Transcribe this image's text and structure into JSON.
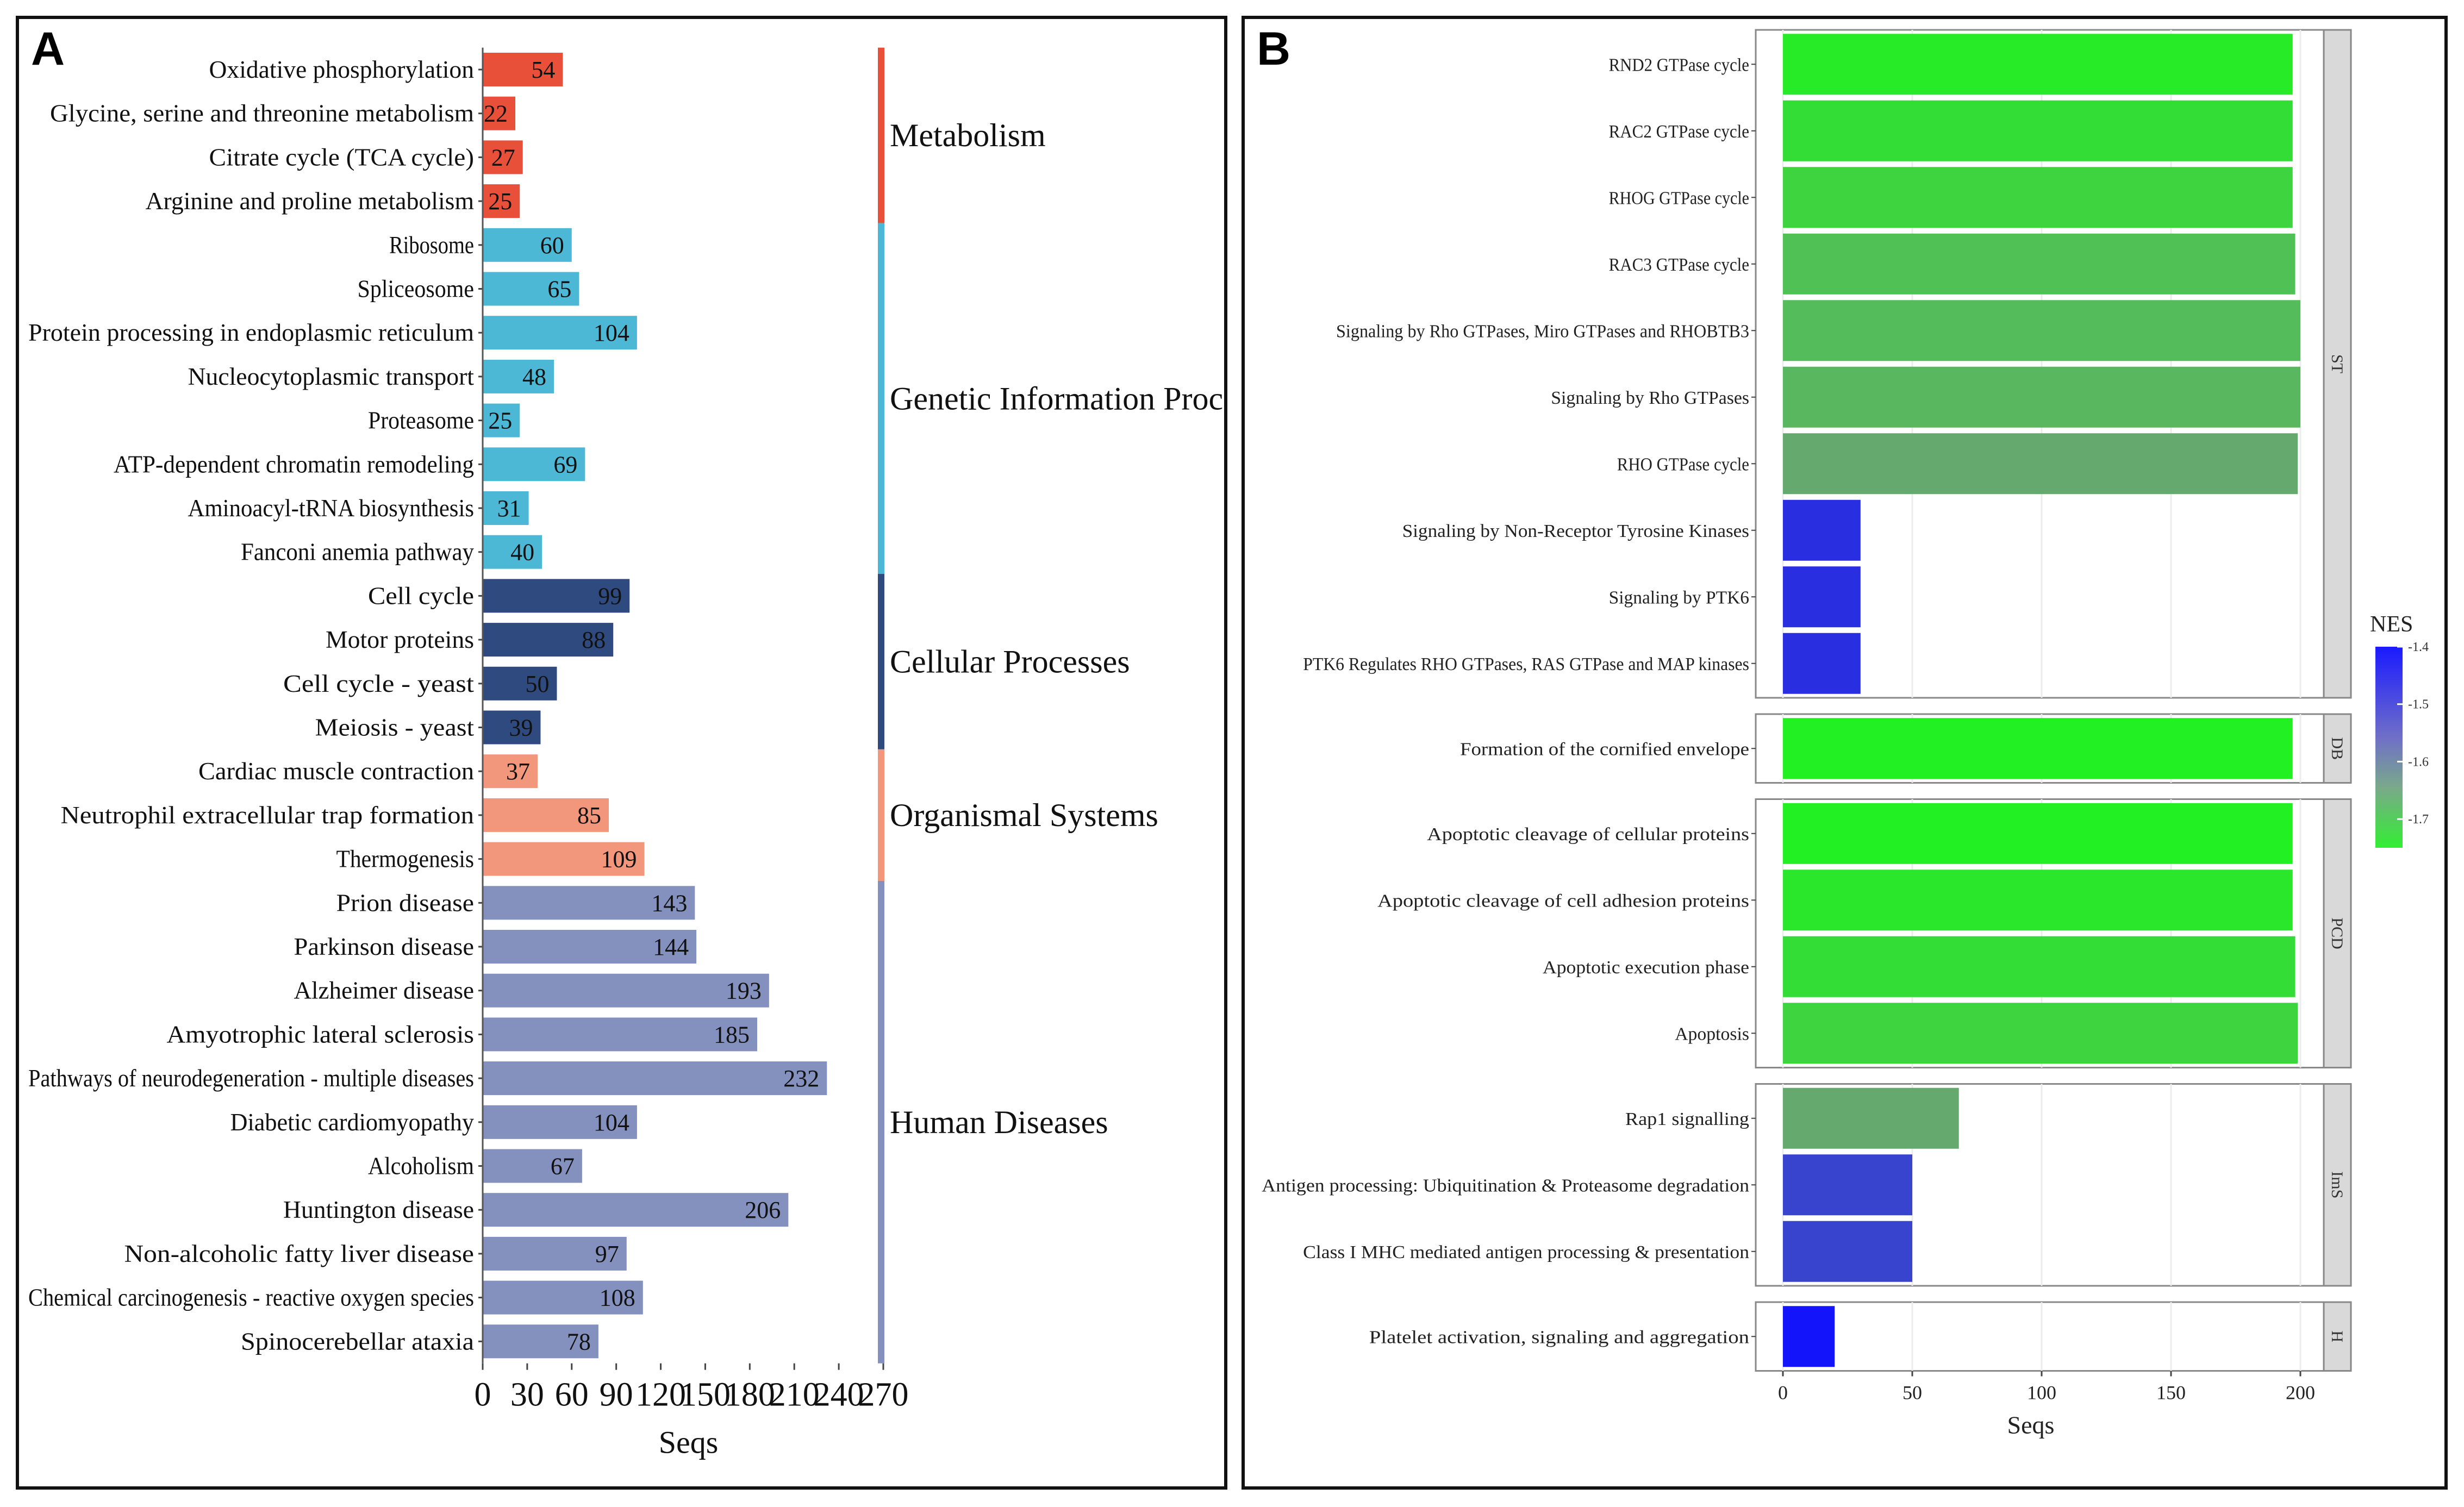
{
  "panelA": {
    "label": "A",
    "chart_data": {
      "type": "bar",
      "orientation": "horizontal",
      "xlabel": "Seqs",
      "xlim": [
        0,
        270
      ],
      "xticks": [
        "0",
        "30",
        "60",
        "90",
        "120",
        "150",
        "180",
        "210",
        "240",
        "270"
      ],
      "categories": [
        "Oxidative phosphorylation",
        "Glycine, serine and threonine metabolism",
        "Citrate cycle (TCA cycle)",
        "Arginine and proline metabolism",
        "Ribosome",
        "Spliceosome",
        "Protein processing in endoplasmic reticulum",
        "Nucleocytoplasmic transport",
        "Proteasome",
        "ATP-dependent chromatin remodeling",
        "Aminoacyl-tRNA biosynthesis",
        "Fanconi anemia pathway",
        "Cell cycle",
        "Motor proteins",
        "Cell cycle - yeast",
        "Meiosis - yeast",
        "Cardiac muscle contraction",
        "Neutrophil extracellular trap formation",
        "Thermogenesis",
        "Prion disease",
        "Parkinson disease",
        "Alzheimer disease",
        "Amyotrophic lateral sclerosis",
        "Pathways of neurodegeneration - multiple diseases",
        "Diabetic cardiomyopathy",
        "Alcoholism",
        "Huntington disease",
        "Non-alcoholic fatty liver disease",
        "Chemical carcinogenesis - reactive oxygen species",
        "Spinocerebellar ataxia"
      ],
      "values": [
        54,
        22,
        27,
        25,
        60,
        65,
        104,
        48,
        25,
        69,
        31,
        40,
        99,
        88,
        50,
        39,
        37,
        85,
        109,
        143,
        144,
        193,
        185,
        232,
        104,
        67,
        206,
        97,
        108,
        78
      ],
      "value_labels": [
        "54",
        "22",
        "27",
        "25",
        "60",
        "65",
        "104",
        "48",
        "25",
        "69",
        "31",
        "40",
        "99",
        "88",
        "50",
        "39",
        "37",
        "85",
        "109",
        "143",
        "144",
        "193",
        "185",
        "232",
        "104",
        "67",
        "206",
        "97",
        "108",
        "78"
      ],
      "groups": [
        {
          "name": "Metabolism",
          "start": 0,
          "end": 3,
          "color": "#e8503a"
        },
        {
          "name": "Genetic Information Processing",
          "start": 4,
          "end": 11,
          "color": "#4db8d6"
        },
        {
          "name": "Cellular Processes",
          "start": 12,
          "end": 15,
          "color": "#2f4a7e"
        },
        {
          "name": "Organismal Systems",
          "start": 16,
          "end": 18,
          "color": "#f2977c"
        },
        {
          "name": "Human Diseases",
          "start": 19,
          "end": 29,
          "color": "#8490bd"
        }
      ]
    }
  },
  "panelB": {
    "label": "B",
    "chart_data": {
      "type": "bar",
      "orientation": "horizontal",
      "xlabel": "Seqs",
      "xlim": [
        0,
        210
      ],
      "xticks": [
        "0",
        "50",
        "100",
        "150",
        "200"
      ],
      "legend": {
        "title": "NES",
        "ticks": [
          "-1.4",
          "-1.5",
          "-1.6",
          "-1.7"
        ],
        "range": [
          -1.75,
          -1.4
        ],
        "position": "right"
      },
      "facets": [
        {
          "name": "ST",
          "rows": [
            {
              "label": "RND2 GTPase cycle",
              "value": 197,
              "nes": -1.75
            },
            {
              "label": "RAC2 GTPase cycle",
              "value": 197,
              "nes": -1.72
            },
            {
              "label": "RHOG GTPase cycle",
              "value": 197,
              "nes": -1.7
            },
            {
              "label": "RAC3 GTPase cycle",
              "value": 198,
              "nes": -1.66
            },
            {
              "label": "Signaling by Rho GTPases, Miro GTPases and RHOBTB3",
              "value": 200,
              "nes": -1.65
            },
            {
              "label": "Signaling by Rho GTPases",
              "value": 200,
              "nes": -1.64
            },
            {
              "label": "RHO GTPase cycle",
              "value": 199,
              "nes": -1.61
            },
            {
              "label": "Signaling by Non-Receptor Tyrosine Kinases",
              "value": 30,
              "nes": -1.42
            },
            {
              "label": "Signaling by PTK6",
              "value": 30,
              "nes": -1.42
            },
            {
              "label": "PTK6 Regulates RHO GTPases, RAS GTPase and MAP kinases",
              "value": 30,
              "nes": -1.42
            }
          ]
        },
        {
          "name": "DB",
          "rows": [
            {
              "label": "Formation of the cornified envelope",
              "value": 197,
              "nes": -1.76
            }
          ]
        },
        {
          "name": "PCD",
          "rows": [
            {
              "label": "Apoptotic cleavage of cellular proteins",
              "value": 197,
              "nes": -1.76
            },
            {
              "label": "Apoptotic cleavage of cell adhesion  proteins",
              "value": 197,
              "nes": -1.74
            },
            {
              "label": "Apoptotic execution phase",
              "value": 198,
              "nes": -1.72
            },
            {
              "label": "Apoptosis",
              "value": 199,
              "nes": -1.7
            }
          ]
        },
        {
          "name": "ImS",
          "rows": [
            {
              "label": "Rap1 signalling",
              "value": 68,
              "nes": -1.61
            },
            {
              "label": "Antigen processing: Ubiquitination & Proteasome degradation",
              "value": 50,
              "nes": -1.45
            },
            {
              "label": "Class I MHC mediated antigen processing & presentation",
              "value": 50,
              "nes": -1.45
            }
          ]
        },
        {
          "name": "H",
          "rows": [
            {
              "label": "Platelet activation, signaling and aggregation",
              "value": 20,
              "nes": -1.38
            }
          ]
        }
      ]
    }
  }
}
